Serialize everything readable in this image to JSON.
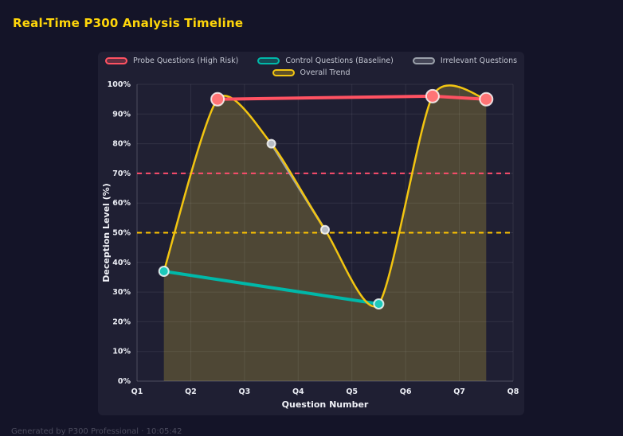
{
  "page": {
    "title": "Real-Time P300 Analysis Timeline",
    "footer": "Generated by P300 Professional · 10:05:42"
  },
  "colors": {
    "title": "#ffd60a",
    "page_background": "#141428",
    "panel_background": "#1f1f33",
    "grid": "rgba(255,255,255,0.08)",
    "axis_text": "#eceef5"
  },
  "chart_data": {
    "type": "line",
    "title": "Real-Time P300 Analysis Timeline",
    "xlabel": "Question Number",
    "ylabel": "Deception Level (%)",
    "x_ticks": [
      "Q1",
      "Q2",
      "Q3",
      "Q4",
      "Q5",
      "Q6",
      "Q7",
      "Q8"
    ],
    "y_ticks": [
      "0%",
      "10%",
      "20%",
      "30%",
      "40%",
      "50%",
      "60%",
      "70%",
      "80%",
      "90%",
      "100%"
    ],
    "xlim": [
      1,
      8
    ],
    "ylim": [
      0,
      100
    ],
    "grid": true,
    "legend_position": "top",
    "series": [
      {
        "name": "Probe Questions (High Risk)",
        "color": "#ff5262",
        "marker_fill": "#ff7476",
        "point_radius": 8,
        "line_width": 4,
        "smooth": false,
        "points": [
          {
            "x": 2.5,
            "y": 95
          },
          {
            "x": 6.5,
            "y": 96
          },
          {
            "x": 7.5,
            "y": 95
          }
        ]
      },
      {
        "name": "Control Questions (Baseline)",
        "color": "#00b8a9",
        "marker_fill": "#1cc9ba",
        "point_radius": 6,
        "line_width": 4,
        "smooth": false,
        "points": [
          {
            "x": 1.5,
            "y": 37
          },
          {
            "x": 5.5,
            "y": 26
          }
        ]
      },
      {
        "name": "Irrelevant Questions",
        "color": "#9aa0aa",
        "marker_fill": "#b7bcc4",
        "point_radius": 5,
        "line_width": 3,
        "smooth": false,
        "points": [
          {
            "x": 3.5,
            "y": 80
          },
          {
            "x": 4.5,
            "y": 51
          }
        ]
      },
      {
        "name": "Overall Trend",
        "color": "#f2c511",
        "marker_fill": "#f2c511",
        "point_radius": 0,
        "line_width": 2.5,
        "smooth": true,
        "fill": true,
        "fill_color": "rgba(212,184,60,0.26)",
        "points": [
          {
            "x": 1.5,
            "y": 37
          },
          {
            "x": 2.5,
            "y": 95
          },
          {
            "x": 3.5,
            "y": 80
          },
          {
            "x": 4.5,
            "y": 51
          },
          {
            "x": 5.5,
            "y": 26
          },
          {
            "x": 6.5,
            "y": 96
          },
          {
            "x": 7.5,
            "y": 95
          }
        ]
      }
    ],
    "thresholds": [
      {
        "label": "high-risk-threshold",
        "y": 70,
        "color": "#ff4d6d"
      },
      {
        "label": "baseline-threshold",
        "y": 50,
        "color": "#ffc400"
      }
    ]
  }
}
